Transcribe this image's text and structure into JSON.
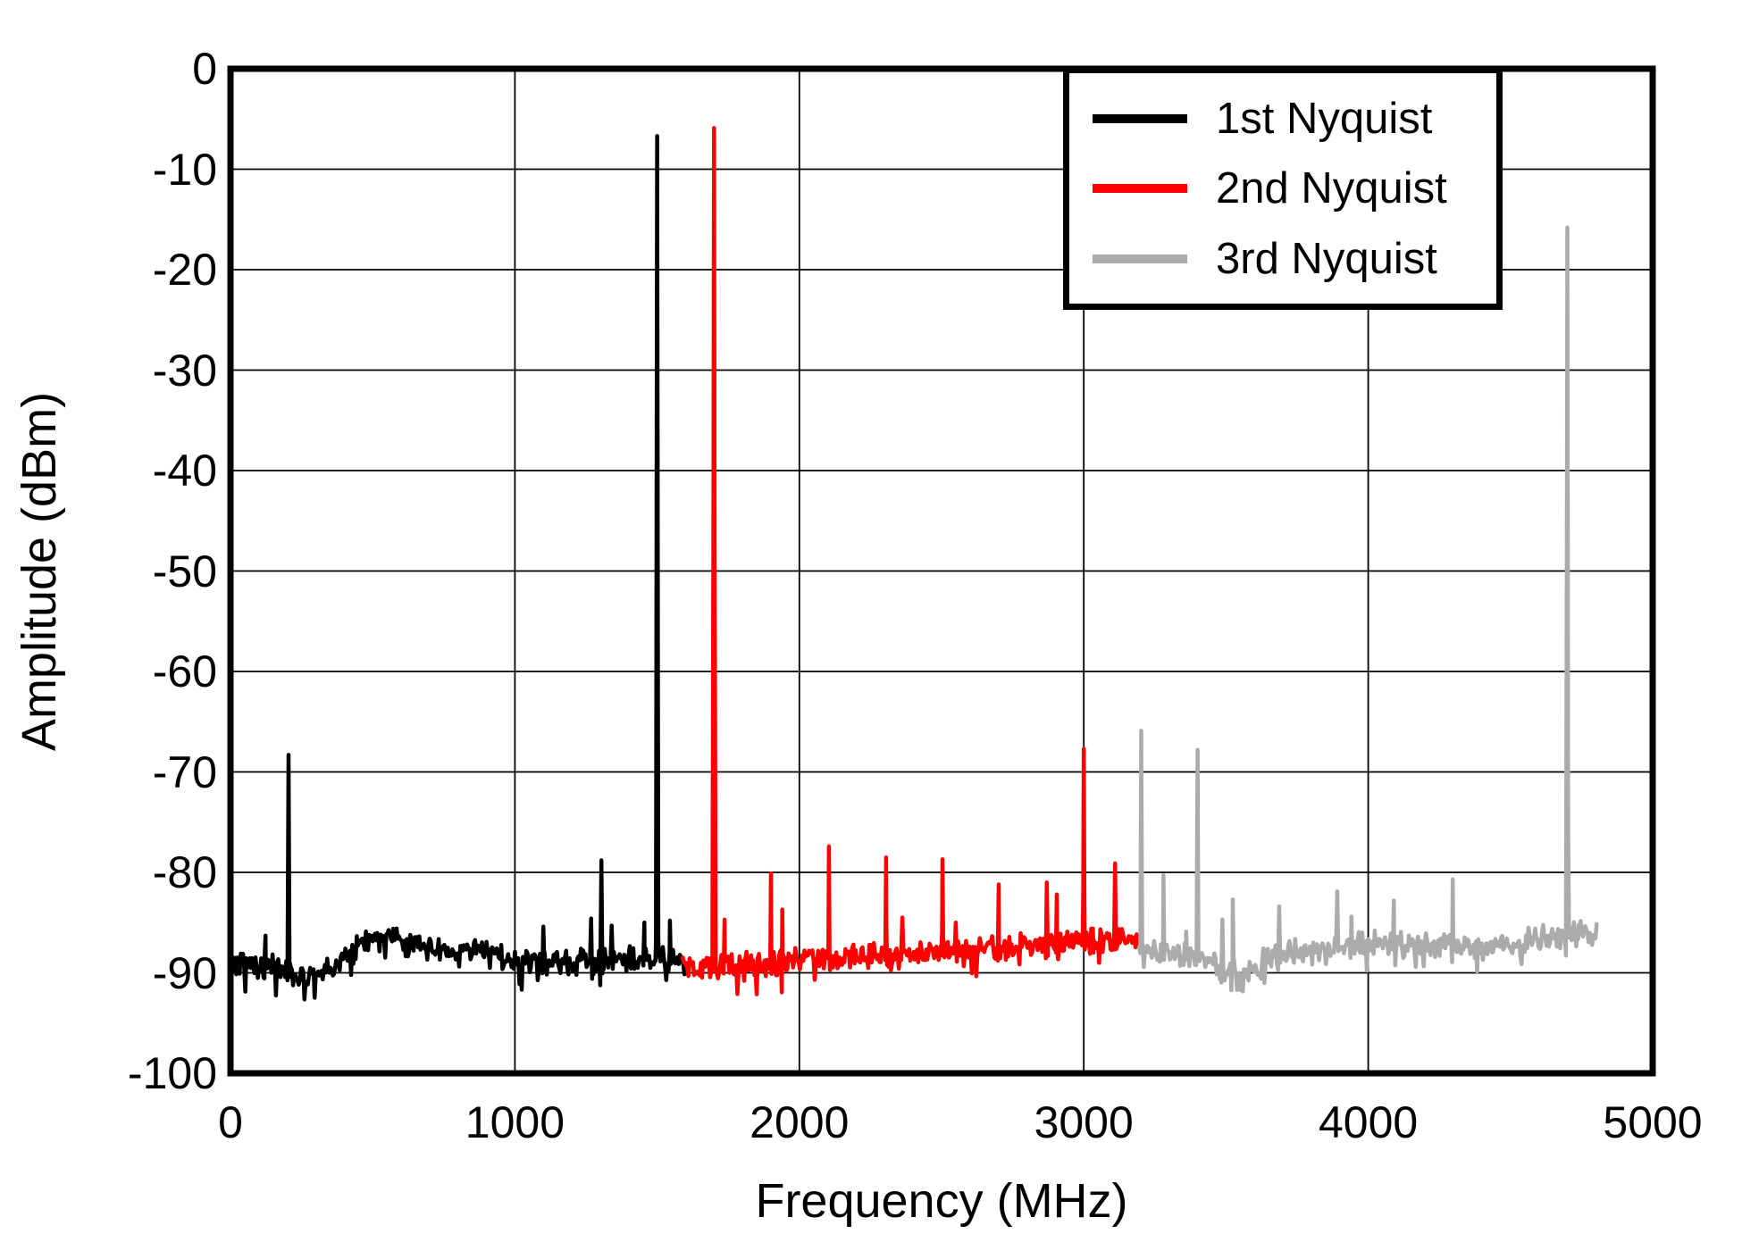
{
  "legend": {
    "entries": [
      {
        "label": "1st Nyquist",
        "color": "#000000"
      },
      {
        "label": "2nd Nyquist",
        "color": "#FF0000"
      },
      {
        "label": "3rd Nyquist",
        "color": "#ABABAB"
      }
    ]
  },
  "chart_data": {
    "type": "line",
    "title": "",
    "xlabel": "Frequency (MHz)",
    "ylabel": "Amplitude (dBm)",
    "xlim": [
      0,
      5000
    ],
    "ylim": [
      -100,
      0
    ],
    "x_ticks": [
      0,
      1000,
      2000,
      3000,
      4000,
      5000
    ],
    "y_ticks": [
      0,
      -10,
      -20,
      -30,
      -40,
      -50,
      -60,
      -70,
      -80,
      -90,
      -100
    ],
    "grid": "on",
    "legend_position": "upper-right",
    "series": [
      {
        "name": "1st Nyquist",
        "color": "#000000",
        "f_start": 0,
        "f_end": 1600,
        "main_tone": {
          "f": 1500,
          "dBm": -6.7
        },
        "noise_floor": [
          [
            0,
            -89.0
          ],
          [
            120,
            -89.3
          ],
          [
            200,
            -90.0
          ],
          [
            300,
            -90.2
          ],
          [
            380,
            -89.2
          ],
          [
            450,
            -87.3
          ],
          [
            520,
            -86.3
          ],
          [
            580,
            -86.5
          ],
          [
            650,
            -87.6
          ],
          [
            750,
            -88.0
          ],
          [
            900,
            -87.8
          ],
          [
            1000,
            -88.8
          ],
          [
            1100,
            -89.2
          ],
          [
            1200,
            -89.0
          ],
          [
            1300,
            -88.8
          ],
          [
            1400,
            -88.6
          ],
          [
            1500,
            -88.6
          ],
          [
            1600,
            -88.8
          ]
        ],
        "spurs": [
          [
            123,
            -86.3
          ],
          [
            204,
            -68.3
          ],
          [
            1100,
            -85.4
          ],
          [
            1268,
            -84.6
          ],
          [
            1304,
            -78.8
          ],
          [
            1340,
            -85.3
          ],
          [
            1455,
            -85.0
          ],
          [
            1500,
            -6.7
          ],
          [
            1545,
            -84.8
          ]
        ]
      },
      {
        "name": "2nd Nyquist",
        "color": "#FF0000",
        "f_start": 1590,
        "f_end": 3205,
        "main_tone": {
          "f": 1700,
          "dBm": -5.9
        },
        "noise_floor": [
          [
            1590,
            -89.3
          ],
          [
            1700,
            -89.2
          ],
          [
            1850,
            -89.4
          ],
          [
            2000,
            -88.8
          ],
          [
            2150,
            -88.4
          ],
          [
            2300,
            -88.2
          ],
          [
            2450,
            -87.9
          ],
          [
            2600,
            -87.6
          ],
          [
            2750,
            -87.4
          ],
          [
            2900,
            -87.1
          ],
          [
            3000,
            -86.9
          ],
          [
            3100,
            -86.8
          ],
          [
            3205,
            -87.2
          ]
        ],
        "spurs": [
          [
            1700,
            -5.9
          ],
          [
            1737,
            -84.7
          ],
          [
            1900,
            -80.1
          ],
          [
            1940,
            -83.7
          ],
          [
            2104,
            -77.4
          ],
          [
            2305,
            -78.5
          ],
          [
            2362,
            -84.5
          ],
          [
            2503,
            -78.7
          ],
          [
            2550,
            -85.0
          ],
          [
            2701,
            -81.2
          ],
          [
            2870,
            -81.0
          ],
          [
            2905,
            -82.2
          ],
          [
            3000,
            -67.7
          ],
          [
            3032,
            -85.6
          ],
          [
            3110,
            -79.1
          ]
        ]
      },
      {
        "name": "3rd Nyquist",
        "color": "#ABABAB",
        "f_start": 3195,
        "f_end": 4805,
        "main_tone": {
          "f": 4700,
          "dBm": -15.8
        },
        "noise_floor": [
          [
            3195,
            -87.6
          ],
          [
            3300,
            -88.2
          ],
          [
            3400,
            -88.6
          ],
          [
            3500,
            -89.6
          ],
          [
            3560,
            -89.8
          ],
          [
            3650,
            -88.6
          ],
          [
            3750,
            -88.0
          ],
          [
            3850,
            -87.4
          ],
          [
            3950,
            -87.2
          ],
          [
            4050,
            -87.0
          ],
          [
            4150,
            -87.3
          ],
          [
            4250,
            -87.2
          ],
          [
            4350,
            -87.6
          ],
          [
            4450,
            -87.2
          ],
          [
            4550,
            -86.8
          ],
          [
            4650,
            -86.5
          ],
          [
            4750,
            -86.3
          ],
          [
            4805,
            -86.4
          ]
        ],
        "spurs": [
          [
            3202,
            -65.9
          ],
          [
            3280,
            -80.3
          ],
          [
            3360,
            -85.9
          ],
          [
            3400,
            -67.8
          ],
          [
            3487,
            -84.7
          ],
          [
            3524,
            -82.7
          ],
          [
            3687,
            -83.4
          ],
          [
            3891,
            -81.9
          ],
          [
            3941,
            -84.4
          ],
          [
            4090,
            -82.8
          ],
          [
            4297,
            -80.7
          ],
          [
            4700,
            -15.8
          ],
          [
            4740,
            -85.2
          ]
        ]
      }
    ]
  }
}
